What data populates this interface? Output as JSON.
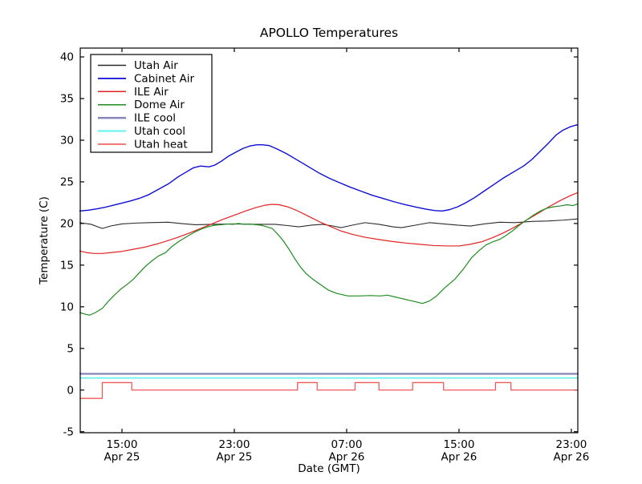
{
  "chart_data": {
    "type": "line",
    "title": "APOLLO Temperatures",
    "xlabel": "Date (GMT)",
    "ylabel": "Temperature (C)",
    "x_unit": "hours since Apr 25 00:00 GMT",
    "xlim": [
      12.03,
      47.46
    ],
    "ylim": [
      -5.12,
      41.06
    ],
    "grid": false,
    "legend_position": "upper left",
    "xticks": [
      {
        "pos": 15,
        "line1": "15:00",
        "line2": "Apr 25"
      },
      {
        "pos": 23,
        "line1": "23:00",
        "line2": "Apr 25"
      },
      {
        "pos": 31,
        "line1": "07:00",
        "line2": "Apr 26"
      },
      {
        "pos": 39,
        "line1": "15:00",
        "line2": "Apr 26"
      },
      {
        "pos": 47,
        "line1": "23:00",
        "line2": "Apr 26"
      }
    ],
    "yticks": [
      -5,
      0,
      5,
      10,
      15,
      20,
      25,
      30,
      35,
      40
    ],
    "series": [
      {
        "name": "Utah Air",
        "color": "#2b2b2b",
        "width": 1.1,
        "points": [
          [
            12.0,
            20.1
          ],
          [
            12.8,
            19.9
          ],
          [
            13.6,
            19.4
          ],
          [
            14.2,
            19.7
          ],
          [
            15.0,
            19.95
          ],
          [
            16.0,
            20.05
          ],
          [
            17.0,
            20.1
          ],
          [
            18.3,
            20.15
          ],
          [
            19.2,
            20.0
          ],
          [
            20.2,
            19.85
          ],
          [
            21.5,
            19.9
          ],
          [
            23.0,
            19.95
          ],
          [
            24.5,
            19.9
          ],
          [
            25.9,
            19.9
          ],
          [
            26.8,
            19.75
          ],
          [
            27.6,
            19.6
          ],
          [
            28.5,
            19.8
          ],
          [
            29.3,
            19.9
          ],
          [
            30.0,
            19.7
          ],
          [
            30.6,
            19.5
          ],
          [
            31.4,
            19.8
          ],
          [
            32.3,
            20.1
          ],
          [
            33.3,
            19.9
          ],
          [
            34.3,
            19.6
          ],
          [
            34.9,
            19.5
          ],
          [
            35.9,
            19.8
          ],
          [
            36.9,
            20.1
          ],
          [
            37.9,
            19.95
          ],
          [
            38.9,
            19.8
          ],
          [
            39.8,
            19.7
          ],
          [
            40.8,
            19.95
          ],
          [
            41.9,
            20.15
          ],
          [
            43.0,
            20.1
          ],
          [
            44.2,
            20.25
          ],
          [
            45.3,
            20.3
          ],
          [
            46.4,
            20.4
          ],
          [
            47.46,
            20.55
          ]
        ]
      },
      {
        "name": "Cabinet Air",
        "color": "#0d0dd6",
        "width": 1.4,
        "points": [
          [
            12.0,
            21.5
          ],
          [
            12.6,
            21.6
          ],
          [
            13.2,
            21.75
          ],
          [
            13.8,
            21.95
          ],
          [
            14.4,
            22.2
          ],
          [
            15.0,
            22.45
          ],
          [
            15.6,
            22.7
          ],
          [
            16.2,
            23.0
          ],
          [
            16.9,
            23.45
          ],
          [
            17.6,
            24.1
          ],
          [
            18.3,
            24.75
          ],
          [
            19.0,
            25.6
          ],
          [
            19.6,
            26.2
          ],
          [
            20.1,
            26.7
          ],
          [
            20.6,
            26.9
          ],
          [
            20.9,
            26.85
          ],
          [
            21.2,
            26.8
          ],
          [
            21.6,
            27.0
          ],
          [
            22.1,
            27.5
          ],
          [
            22.6,
            28.1
          ],
          [
            23.1,
            28.55
          ],
          [
            23.6,
            29.0
          ],
          [
            24.1,
            29.3
          ],
          [
            24.6,
            29.45
          ],
          [
            25.0,
            29.45
          ],
          [
            25.5,
            29.35
          ],
          [
            26.1,
            28.9
          ],
          [
            26.7,
            28.4
          ],
          [
            27.3,
            27.8
          ],
          [
            27.9,
            27.2
          ],
          [
            28.5,
            26.6
          ],
          [
            29.1,
            26.0
          ],
          [
            29.8,
            25.4
          ],
          [
            30.5,
            24.9
          ],
          [
            31.2,
            24.4
          ],
          [
            32.0,
            23.9
          ],
          [
            32.8,
            23.4
          ],
          [
            33.6,
            23.0
          ],
          [
            34.4,
            22.6
          ],
          [
            35.2,
            22.25
          ],
          [
            36.0,
            21.95
          ],
          [
            36.7,
            21.7
          ],
          [
            37.3,
            21.55
          ],
          [
            37.8,
            21.5
          ],
          [
            38.3,
            21.65
          ],
          [
            38.9,
            22.0
          ],
          [
            39.5,
            22.5
          ],
          [
            40.1,
            23.1
          ],
          [
            40.8,
            23.9
          ],
          [
            41.5,
            24.7
          ],
          [
            42.2,
            25.5
          ],
          [
            42.9,
            26.2
          ],
          [
            43.6,
            26.9
          ],
          [
            44.2,
            27.7
          ],
          [
            44.8,
            28.7
          ],
          [
            45.4,
            29.7
          ],
          [
            45.9,
            30.6
          ],
          [
            46.4,
            31.2
          ],
          [
            46.9,
            31.6
          ],
          [
            47.3,
            31.8
          ],
          [
            47.46,
            31.85
          ]
        ]
      },
      {
        "name": "ILE Air",
        "color": "#e32222",
        "width": 1.2,
        "points": [
          [
            12.0,
            16.7
          ],
          [
            12.5,
            16.5
          ],
          [
            13.0,
            16.4
          ],
          [
            13.6,
            16.4
          ],
          [
            14.2,
            16.5
          ],
          [
            15.0,
            16.65
          ],
          [
            15.8,
            16.9
          ],
          [
            16.6,
            17.15
          ],
          [
            17.4,
            17.5
          ],
          [
            18.2,
            17.9
          ],
          [
            19.0,
            18.35
          ],
          [
            19.8,
            18.85
          ],
          [
            20.6,
            19.4
          ],
          [
            21.4,
            19.95
          ],
          [
            22.2,
            20.5
          ],
          [
            23.0,
            21.0
          ],
          [
            23.8,
            21.5
          ],
          [
            24.5,
            21.9
          ],
          [
            25.2,
            22.2
          ],
          [
            25.7,
            22.3
          ],
          [
            26.2,
            22.25
          ],
          [
            26.8,
            22.0
          ],
          [
            27.4,
            21.6
          ],
          [
            28.0,
            21.1
          ],
          [
            28.6,
            20.6
          ],
          [
            29.2,
            20.1
          ],
          [
            29.9,
            19.6
          ],
          [
            30.6,
            19.1
          ],
          [
            31.4,
            18.7
          ],
          [
            32.3,
            18.35
          ],
          [
            33.2,
            18.1
          ],
          [
            34.2,
            17.85
          ],
          [
            35.2,
            17.65
          ],
          [
            36.2,
            17.5
          ],
          [
            37.2,
            17.35
          ],
          [
            38.2,
            17.3
          ],
          [
            39.0,
            17.3
          ],
          [
            39.8,
            17.5
          ],
          [
            40.6,
            17.8
          ],
          [
            41.4,
            18.3
          ],
          [
            42.2,
            18.9
          ],
          [
            43.0,
            19.6
          ],
          [
            43.8,
            20.4
          ],
          [
            44.6,
            21.2
          ],
          [
            45.4,
            22.0
          ],
          [
            46.2,
            22.75
          ],
          [
            47.0,
            23.4
          ],
          [
            47.46,
            23.7
          ]
        ]
      },
      {
        "name": "Dome Air",
        "color": "#1f8c1f",
        "width": 1.2,
        "points": [
          [
            12.0,
            9.3
          ],
          [
            12.4,
            9.1
          ],
          [
            12.7,
            9.0
          ],
          [
            13.1,
            9.3
          ],
          [
            13.6,
            9.8
          ],
          [
            14.0,
            10.6
          ],
          [
            14.4,
            11.3
          ],
          [
            14.9,
            12.1
          ],
          [
            15.3,
            12.6
          ],
          [
            15.8,
            13.3
          ],
          [
            16.3,
            14.2
          ],
          [
            16.7,
            14.9
          ],
          [
            17.2,
            15.6
          ],
          [
            17.6,
            16.1
          ],
          [
            18.1,
            16.5
          ],
          [
            18.6,
            17.3
          ],
          [
            19.1,
            17.9
          ],
          [
            19.6,
            18.4
          ],
          [
            20.1,
            18.9
          ],
          [
            20.6,
            19.3
          ],
          [
            21.1,
            19.6
          ],
          [
            21.6,
            19.8
          ],
          [
            22.1,
            19.85
          ],
          [
            22.5,
            19.95
          ],
          [
            22.9,
            19.9
          ],
          [
            23.3,
            20.0
          ],
          [
            23.7,
            19.9
          ],
          [
            24.1,
            19.95
          ],
          [
            24.5,
            19.85
          ],
          [
            24.9,
            19.8
          ],
          [
            25.3,
            19.6
          ],
          [
            25.7,
            19.4
          ],
          [
            26.1,
            18.7
          ],
          [
            26.5,
            17.9
          ],
          [
            26.9,
            16.9
          ],
          [
            27.3,
            15.8
          ],
          [
            27.7,
            14.8
          ],
          [
            28.1,
            14.0
          ],
          [
            28.6,
            13.3
          ],
          [
            29.1,
            12.7
          ],
          [
            29.7,
            12.0
          ],
          [
            30.3,
            11.6
          ],
          [
            31.1,
            11.3
          ],
          [
            31.9,
            11.3
          ],
          [
            32.7,
            11.35
          ],
          [
            33.4,
            11.3
          ],
          [
            33.9,
            11.4
          ],
          [
            34.4,
            11.2
          ],
          [
            34.9,
            11.0
          ],
          [
            35.4,
            10.8
          ],
          [
            35.9,
            10.6
          ],
          [
            36.4,
            10.4
          ],
          [
            36.9,
            10.7
          ],
          [
            37.4,
            11.3
          ],
          [
            38.0,
            12.3
          ],
          [
            38.7,
            13.3
          ],
          [
            39.3,
            14.5
          ],
          [
            39.9,
            15.9
          ],
          [
            40.4,
            16.7
          ],
          [
            40.9,
            17.4
          ],
          [
            41.4,
            17.8
          ],
          [
            41.9,
            18.1
          ],
          [
            42.3,
            18.5
          ],
          [
            42.8,
            19.1
          ],
          [
            43.3,
            19.8
          ],
          [
            43.8,
            20.4
          ],
          [
            44.3,
            21.0
          ],
          [
            44.8,
            21.5
          ],
          [
            45.2,
            21.8
          ],
          [
            45.7,
            22.0
          ],
          [
            46.2,
            22.1
          ],
          [
            46.7,
            22.25
          ],
          [
            47.1,
            22.15
          ],
          [
            47.46,
            22.35
          ]
        ]
      },
      {
        "name": "ILE cool",
        "color": "#8585b8",
        "width": 2.2,
        "points": [
          [
            12.03,
            1.95
          ],
          [
            47.46,
            1.95
          ]
        ]
      },
      {
        "name": "Utah cool",
        "color": "#5ff2ee",
        "width": 1.6,
        "points": [
          [
            12.03,
            1.45
          ],
          [
            47.46,
            1.45
          ]
        ]
      },
      {
        "name": "Utah heat",
        "color": "#f05a5a",
        "width": 1.3,
        "points": [
          [
            12.03,
            -1.0
          ],
          [
            13.6,
            -1.0
          ],
          [
            13.6,
            0.9
          ],
          [
            15.7,
            0.9
          ],
          [
            15.7,
            0.0
          ],
          [
            27.5,
            0.0
          ],
          [
            27.5,
            0.9
          ],
          [
            28.9,
            0.9
          ],
          [
            28.9,
            0.0
          ],
          [
            31.6,
            0.0
          ],
          [
            31.6,
            0.9
          ],
          [
            33.3,
            0.9
          ],
          [
            33.3,
            0.0
          ],
          [
            35.7,
            0.0
          ],
          [
            35.7,
            0.9
          ],
          [
            37.9,
            0.9
          ],
          [
            37.9,
            0.0
          ],
          [
            41.6,
            0.0
          ],
          [
            41.6,
            0.9
          ],
          [
            42.7,
            0.9
          ],
          [
            42.7,
            0.0
          ],
          [
            47.46,
            0.0
          ]
        ]
      }
    ]
  }
}
